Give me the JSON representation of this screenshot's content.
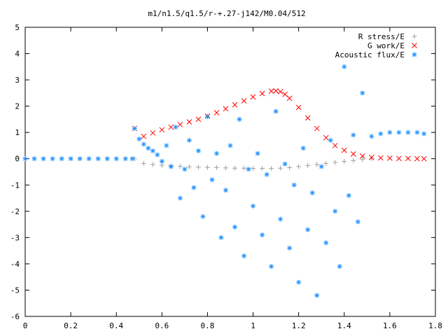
{
  "chart_data": {
    "type": "scatter",
    "title": "m1/n1.5/q1.5/r-+.27-j142/M0.04/512",
    "xlabel": "",
    "ylabel": "",
    "xlim": [
      0,
      1.8
    ],
    "ylim": [
      -6,
      5
    ],
    "x_ticks": [
      "0",
      "0.2",
      "0.4",
      "0.6",
      "0.8",
      "1",
      "1.2",
      "1.4",
      "1.6",
      "1.8"
    ],
    "y_ticks": [
      "5",
      "4",
      "3",
      "2",
      "1",
      "0",
      "-1",
      "-2",
      "-3",
      "-4",
      "-5",
      "-6"
    ],
    "grid": false,
    "legend_position": "top-right",
    "series": [
      {
        "name": "R stress/E",
        "marker": "plus",
        "color": "#a0a0a0",
        "x": [
          0.48,
          0.52,
          0.56,
          0.6,
          0.64,
          0.68,
          0.72,
          0.76,
          0.8,
          0.84,
          0.88,
          0.92,
          0.96,
          1.0,
          1.04,
          1.08,
          1.12,
          1.16,
          1.2,
          1.24,
          1.28,
          1.32,
          1.36,
          1.4,
          1.44,
          1.48,
          1.52
        ],
        "y": [
          0,
          -0.18,
          -0.22,
          -0.25,
          -0.27,
          -0.29,
          -0.31,
          -0.32,
          -0.33,
          -0.34,
          -0.35,
          -0.36,
          -0.36,
          -0.37,
          -0.37,
          -0.37,
          -0.36,
          -0.34,
          -0.3,
          -0.26,
          -0.22,
          -0.18,
          -0.14,
          -0.1,
          -0.07,
          -0.03,
          0
        ]
      },
      {
        "name": "G work/E",
        "marker": "cross",
        "color": "#ff0000",
        "x": [
          0.48,
          0.52,
          0.56,
          0.6,
          0.64,
          0.68,
          0.72,
          0.76,
          0.8,
          0.84,
          0.88,
          0.92,
          0.96,
          1.0,
          1.04,
          1.08,
          1.1,
          1.12,
          1.14,
          1.16,
          1.2,
          1.24,
          1.28,
          1.32,
          1.36,
          1.4,
          1.44,
          1.48,
          1.52,
          1.56,
          1.6,
          1.64,
          1.68,
          1.72,
          1.75
        ],
        "y": [
          1.15,
          0.85,
          0.98,
          1.1,
          1.2,
          1.3,
          1.4,
          1.5,
          1.62,
          1.75,
          1.9,
          2.05,
          2.2,
          2.35,
          2.48,
          2.57,
          2.58,
          2.55,
          2.45,
          2.3,
          1.95,
          1.55,
          1.15,
          0.8,
          0.5,
          0.32,
          0.18,
          0.1,
          0.05,
          0.03,
          0.02,
          0.01,
          0.01,
          0.0,
          0.0
        ]
      },
      {
        "name": "Acoustic flux/E",
        "marker": "star",
        "color": "#1e90ff",
        "x": [
          0,
          0.04,
          0.08,
          0.12,
          0.16,
          0.2,
          0.24,
          0.28,
          0.32,
          0.36,
          0.4,
          0.44,
          0.47,
          0.48,
          0.5,
          0.52,
          0.54,
          0.56,
          0.58,
          0.6,
          0.62,
          0.64,
          0.66,
          0.68,
          0.7,
          0.72,
          0.74,
          0.76,
          0.78,
          0.8,
          0.82,
          0.84,
          0.86,
          0.88,
          0.9,
          0.92,
          0.94,
          0.96,
          0.98,
          1.0,
          1.02,
          1.04,
          1.06,
          1.08,
          1.1,
          1.12,
          1.14,
          1.16,
          1.18,
          1.2,
          1.22,
          1.24,
          1.26,
          1.28,
          1.3,
          1.32,
          1.34,
          1.36,
          1.38,
          1.4,
          1.42,
          1.44,
          1.46,
          1.48,
          1.52,
          1.56,
          1.6,
          1.64,
          1.68,
          1.72,
          1.75
        ],
        "y": [
          0,
          0,
          0,
          0,
          0,
          0,
          0,
          0,
          0,
          0,
          0,
          0,
          0,
          1.15,
          0.75,
          0.55,
          0.4,
          0.3,
          0.15,
          -0.1,
          0.5,
          -0.3,
          1.2,
          -1.5,
          -0.4,
          0.7,
          -1.1,
          0.3,
          -2.2,
          1.6,
          -0.8,
          0.2,
          -3.0,
          -1.2,
          0.5,
          -2.6,
          1.5,
          -3.7,
          -0.4,
          -1.8,
          0.2,
          -2.9,
          -0.6,
          -4.1,
          1.8,
          -2.3,
          -0.2,
          -3.4,
          -1.0,
          -4.7,
          0.4,
          -2.7,
          -1.3,
          -5.2,
          -0.3,
          -3.2,
          0.7,
          -2.0,
          -4.1,
          3.5,
          -1.4,
          0.9,
          -2.4,
          2.5,
          0.85,
          0.95,
          1.0,
          1.0,
          1.0,
          1.0,
          0.95
        ]
      }
    ]
  }
}
